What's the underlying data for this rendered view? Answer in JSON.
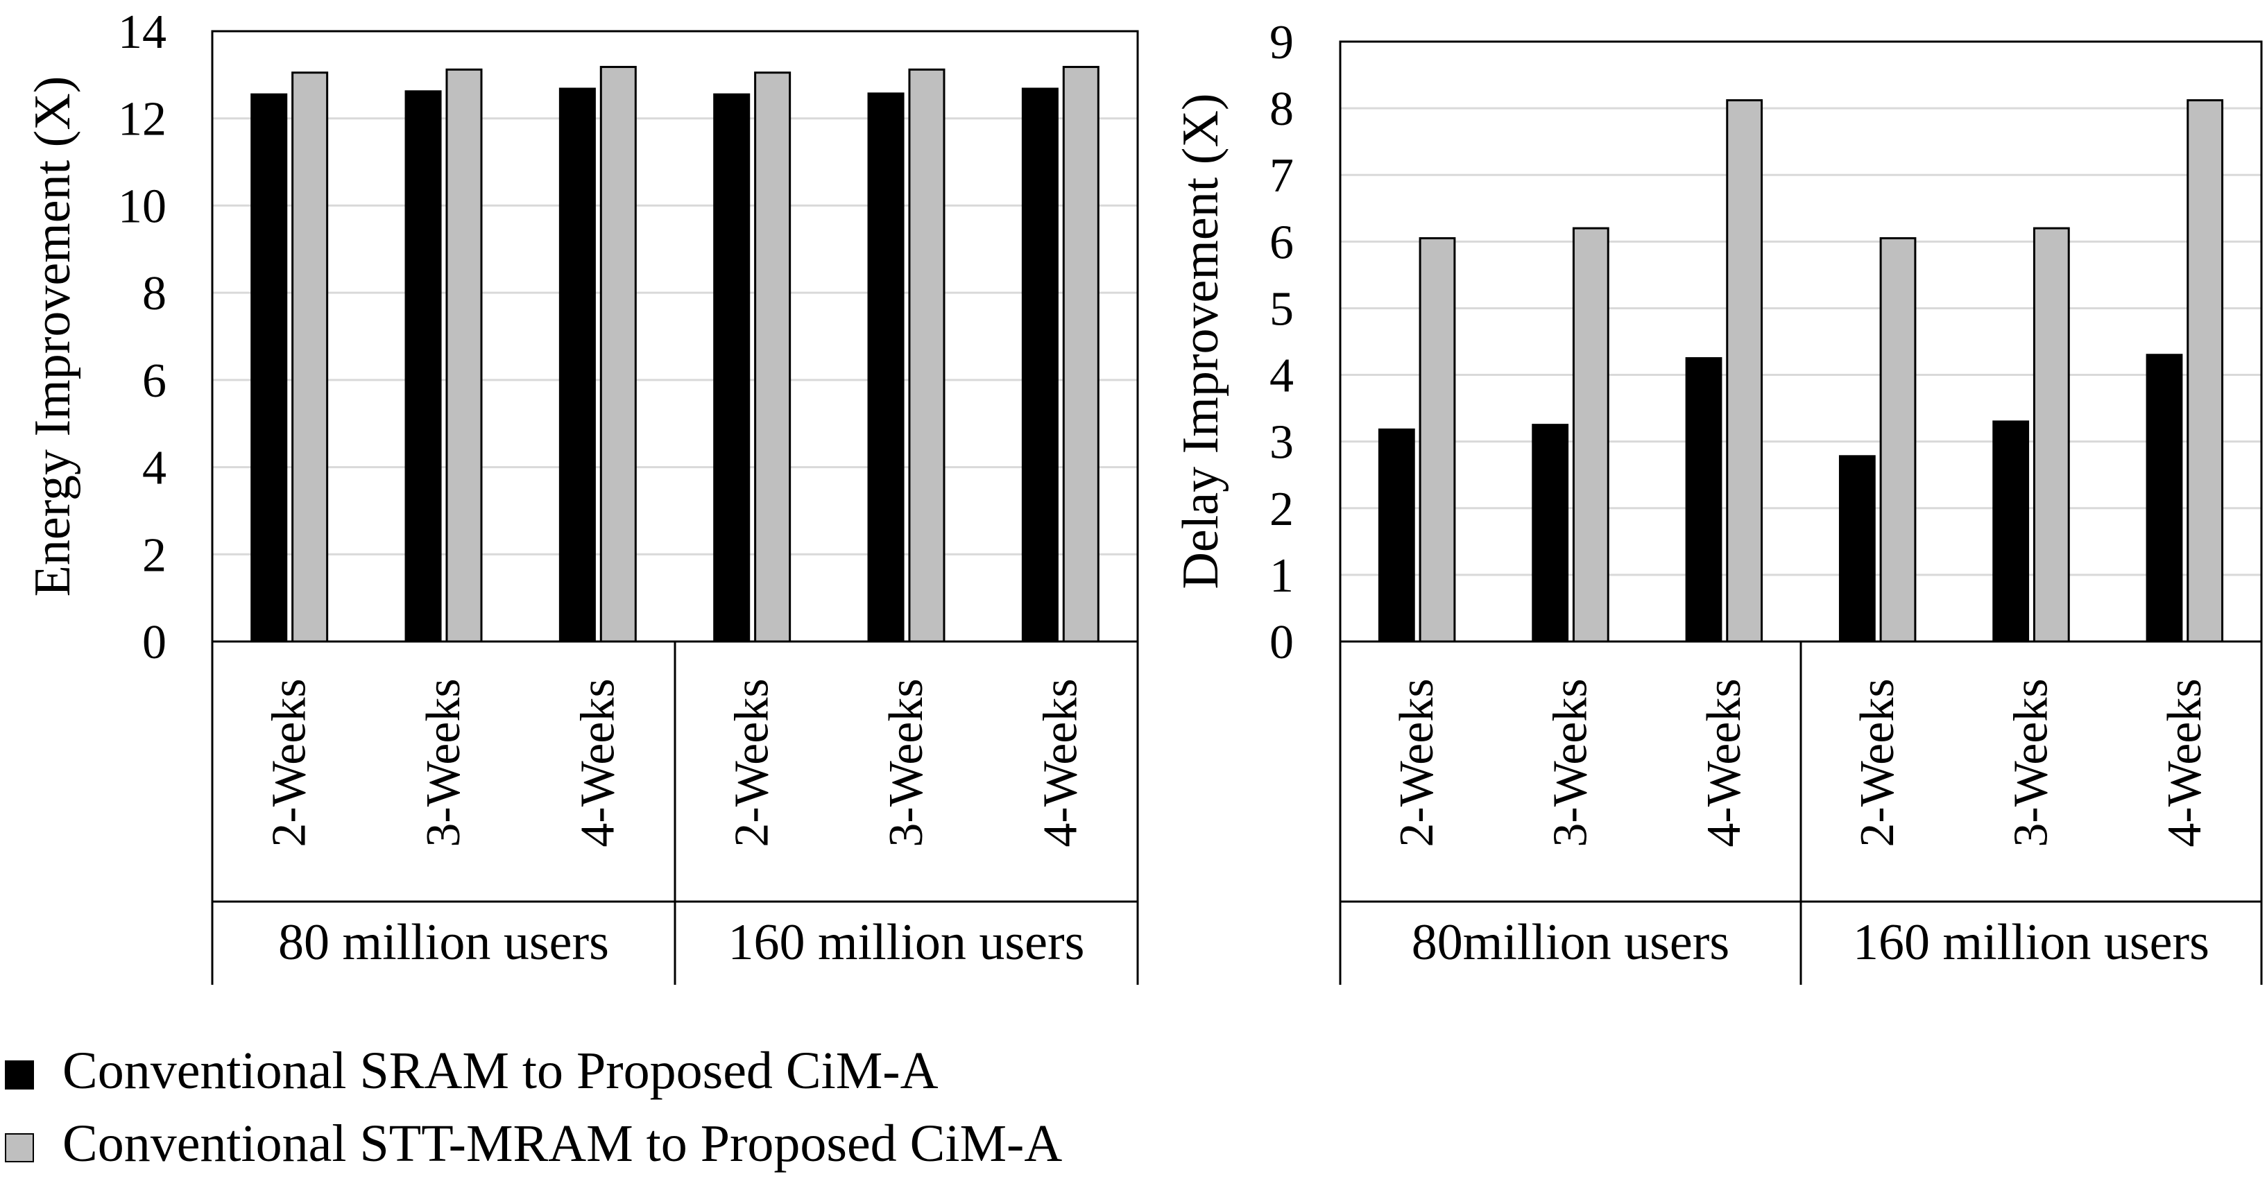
{
  "chart_data": [
    {
      "type": "bar",
      "ylabel": "Energy Improvement (X)",
      "ylim": [
        0,
        14
      ],
      "yticks": [
        0,
        2,
        4,
        6,
        8,
        10,
        12,
        14
      ],
      "grid": true,
      "groups": [
        "80 million users",
        "160 million users"
      ],
      "categories": [
        "2-Weeks",
        "3-Weeks",
        "4-Weeks",
        "2-Weeks",
        "3-Weeks",
        "4-Weeks"
      ],
      "series": [
        {
          "name": "Conventional SRAM to Proposed CiM-A",
          "values": [
            12.55,
            12.62,
            12.68,
            12.55,
            12.57,
            12.68
          ]
        },
        {
          "name": "Conventional STT-MRAM to Proposed CiM-A",
          "values": [
            13.05,
            13.12,
            13.18,
            13.05,
            13.12,
            13.18
          ]
        }
      ]
    },
    {
      "type": "bar",
      "ylabel": "Delay Improvement (X)",
      "ylim": [
        0,
        9
      ],
      "yticks": [
        0,
        1,
        2,
        3,
        4,
        5,
        6,
        7,
        8,
        9
      ],
      "grid": true,
      "groups": [
        "80million users",
        "160 million users"
      ],
      "categories": [
        "2-Weeks",
        "3-Weeks",
        "4-Weeks",
        "2-Weeks",
        "3-Weeks",
        "4-Weeks"
      ],
      "series": [
        {
          "name": "Conventional SRAM to Proposed CiM-A",
          "values": [
            3.18,
            3.25,
            4.25,
            2.78,
            3.3,
            4.3
          ]
        },
        {
          "name": "Conventional STT-MRAM to Proposed CiM-A",
          "values": [
            6.05,
            6.2,
            8.12,
            6.05,
            6.2,
            8.12
          ]
        }
      ]
    }
  ],
  "legend": {
    "position": "bottom-left",
    "entries": [
      {
        "label": "Conventional SRAM to Proposed CiM-A",
        "color": "#000000"
      },
      {
        "label": "Conventional STT-MRAM to Proposed CiM-A",
        "color": "#bfbfbf"
      }
    ]
  },
  "colors": {
    "series1": "#000000",
    "series2": "#bfbfbf",
    "grid": "#d9d9d9",
    "axis": "#000000"
  }
}
